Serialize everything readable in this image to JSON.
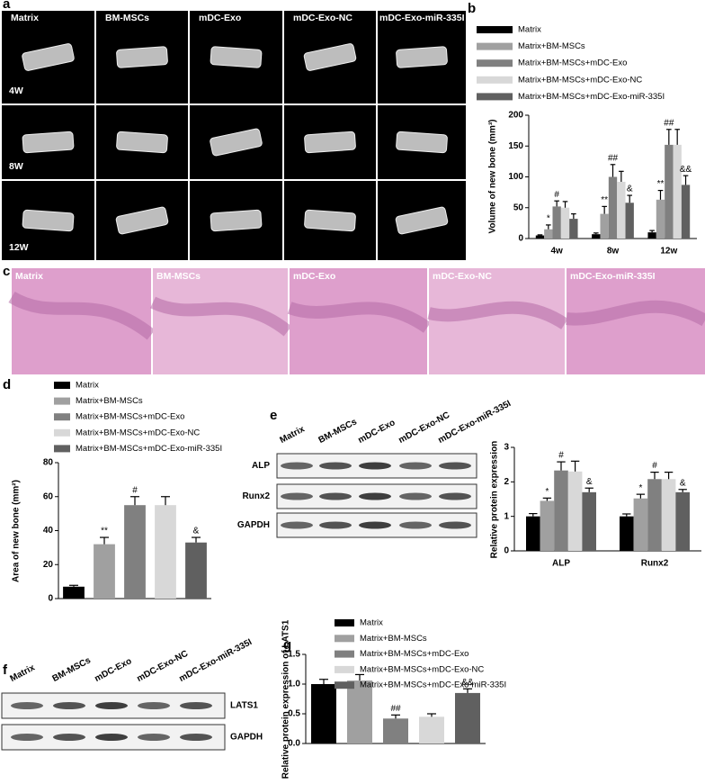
{
  "panels": {
    "a": {
      "letter": "a",
      "columns": [
        "Matrix",
        "BM-MSCs",
        "mDC-Exo",
        "mDC-Exo-NC",
        "mDC-Exo-miR-335I"
      ],
      "rows": [
        "4W",
        "8W",
        "12W"
      ]
    },
    "c": {
      "letter": "c",
      "labels": [
        "Matrix",
        "BM-MSCs",
        "mDC-Exo",
        "mDC-Exo-NC",
        "mDC-Exo-miR-335I"
      ]
    },
    "e_blot": {
      "columns": [
        "Matrix",
        "BM-MSCs",
        "mDC-Exo",
        "mDC-Exo-NC",
        "mDC-Exo-miR-335I"
      ],
      "rows": [
        "ALP",
        "Runx2",
        "GAPDH"
      ]
    },
    "f": {
      "letter": "f",
      "columns": [
        "Matrix",
        "BM-MSCs",
        "mDC-Exo",
        "mDC-Exo-NC",
        "mDC-Exo-miR-335I"
      ],
      "rows": [
        "LATS1",
        "GAPDH"
      ]
    }
  },
  "chart_data": [
    {
      "type": "bar",
      "panel_label": "b",
      "y_label": "Volume of new bone (mm³)",
      "legend": "top",
      "categories": [
        "4w",
        "8w",
        "12w"
      ],
      "ylim": [
        0,
        200
      ],
      "yticks": [
        0,
        50,
        100,
        150,
        200
      ],
      "series": [
        {
          "name": "Matrix",
          "color": "#000000",
          "values": [
            5,
            7,
            10
          ],
          "errors": [
            1,
            2,
            3
          ],
          "significance": [
            null,
            null,
            null
          ]
        },
        {
          "name": "Matrix+BM-MSCs",
          "color": "#a0a0a0",
          "values": [
            15,
            40,
            63
          ],
          "errors": [
            7,
            12,
            15
          ],
          "significance": [
            "*",
            "**",
            "**"
          ]
        },
        {
          "name": "Matrix+BM-MSCs+mDC-Exo",
          "color": "#808080",
          "values": [
            52,
            100,
            152
          ],
          "errors": [
            9,
            20,
            25
          ],
          "significance": [
            "#",
            "##",
            "##"
          ]
        },
        {
          "name": "Matrix+BM-MSCs+mDC-Exo-NC",
          "color": "#d8d8d8",
          "values": [
            50,
            92,
            152
          ],
          "errors": [
            10,
            17,
            25
          ],
          "significance": [
            null,
            null,
            null
          ]
        },
        {
          "name": "Matrix+BM-MSCs+mDC-Exo-miR-335I",
          "color": "#606060",
          "values": [
            32,
            58,
            87
          ],
          "errors": [
            8,
            12,
            15
          ],
          "significance": [
            null,
            "&",
            "&&"
          ]
        }
      ]
    },
    {
      "type": "bar",
      "panel_label": "d",
      "y_label": "Area of new bone (mm²)",
      "legend": "top",
      "ylim": [
        0,
        80
      ],
      "yticks": [
        0,
        20,
        40,
        60,
        80
      ],
      "series": [
        {
          "name": "Matrix",
          "color": "#000000",
          "values": [
            7
          ],
          "errors": [
            0.8
          ],
          "significance": [
            null
          ]
        },
        {
          "name": "Matrix+BM-MSCs",
          "color": "#a0a0a0",
          "values": [
            32
          ],
          "errors": [
            4
          ],
          "significance": [
            "**"
          ]
        },
        {
          "name": "Matrix+BM-MSCs+mDC-Exo",
          "color": "#808080",
          "values": [
            55
          ],
          "errors": [
            5
          ],
          "significance": [
            "#"
          ]
        },
        {
          "name": "Matrix+BM-MSCs+mDC-Exo-NC",
          "color": "#d8d8d8",
          "values": [
            55
          ],
          "errors": [
            5
          ],
          "significance": [
            null
          ]
        },
        {
          "name": "Matrix+BM-MSCs+mDC-Exo-miR-335I",
          "color": "#606060",
          "values": [
            33
          ],
          "errors": [
            3
          ],
          "significance": [
            "&"
          ]
        }
      ]
    },
    {
      "type": "bar",
      "panel_label": "e",
      "y_label": "Relative protein expression",
      "categories": [
        "ALP",
        "Runx2"
      ],
      "ylim": [
        0,
        3
      ],
      "yticks": [
        0,
        1,
        2,
        3
      ],
      "series": [
        {
          "color": "#000000",
          "values": [
            1.0,
            1.0
          ],
          "errors": [
            0.08,
            0.07
          ],
          "significance": [
            null,
            null
          ]
        },
        {
          "color": "#a0a0a0",
          "values": [
            1.45,
            1.52
          ],
          "errors": [
            0.08,
            0.12
          ],
          "significance": [
            "*",
            "*"
          ]
        },
        {
          "color": "#808080",
          "values": [
            2.33,
            2.08
          ],
          "errors": [
            0.25,
            0.2
          ],
          "significance": [
            "#",
            "#"
          ]
        },
        {
          "color": "#d8d8d8",
          "values": [
            2.3,
            2.08
          ],
          "errors": [
            0.3,
            0.2
          ],
          "significance": [
            null,
            null
          ]
        },
        {
          "color": "#606060",
          "values": [
            1.7,
            1.7
          ],
          "errors": [
            0.12,
            0.08
          ],
          "significance": [
            "&",
            "&"
          ]
        }
      ]
    },
    {
      "type": "bar",
      "panel_label": "g",
      "y_label": "Relative protein expression of LATS1",
      "legend": "top",
      "ylim": [
        0,
        1.5
      ],
      "yticks": [
        {
          "value": 0,
          "label": "0.0"
        },
        {
          "value": 0.5,
          "label": "0.5"
        },
        {
          "value": 1,
          "label": "1.0"
        },
        {
          "value": 1.5,
          "label": "1.5"
        }
      ],
      "series": [
        {
          "name": "Matrix",
          "color": "#000000",
          "values": [
            1.0
          ],
          "errors": [
            0.08
          ],
          "significance": [
            null
          ]
        },
        {
          "name": "Matrix+BM-MSCs",
          "color": "#a0a0a0",
          "values": [
            1.06
          ],
          "errors": [
            0.1
          ],
          "significance": [
            null
          ]
        },
        {
          "name": "Matrix+BM-MSCs+mDC-Exo",
          "color": "#808080",
          "values": [
            0.42
          ],
          "errors": [
            0.06
          ],
          "significance": [
            "##"
          ]
        },
        {
          "name": "Matrix+BM-MSCs+mDC-Exo-NC",
          "color": "#d8d8d8",
          "values": [
            0.45
          ],
          "errors": [
            0.05
          ],
          "significance": [
            null
          ]
        },
        {
          "name": "Matrix+BM-MSCs+mDC-Exo-miR-335I",
          "color": "#606060",
          "values": [
            0.85
          ],
          "errors": [
            0.07
          ],
          "significance": [
            "&&"
          ]
        }
      ]
    }
  ]
}
